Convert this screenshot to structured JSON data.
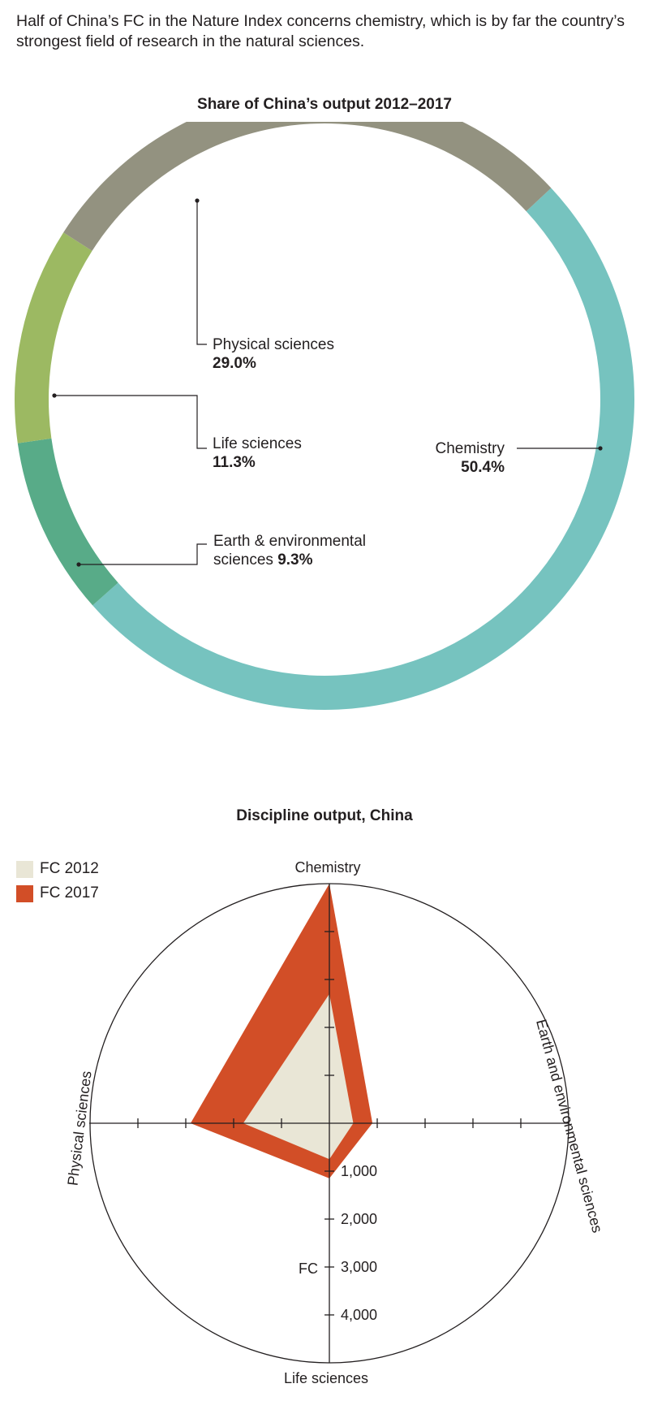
{
  "intro": "Half of China’s FC in the Nature Index concerns chemistry, which is by far the country’s strongest field of research in the natural sciences.",
  "chart_data": [
    {
      "type": "pie",
      "title": "Share of China’s output 2012–2017",
      "slices": [
        {
          "name": "Chemistry",
          "value": 50.4,
          "label": "50.4%",
          "color": "#76c3bf"
        },
        {
          "name": "Earth & environmental sciences",
          "value": 9.3,
          "label": "9.3%",
          "color": "#58ab88"
        },
        {
          "name": "Life sciences",
          "value": 11.3,
          "label": "11.3%",
          "color": "#9cb962"
        },
        {
          "name": "Physical sciences",
          "value": 29.0,
          "label": "29.0%",
          "color": "#939280"
        }
      ]
    },
    {
      "type": "radar",
      "title": "Discipline output, China",
      "axes": [
        "Chemistry",
        "Earth and environmental sciences",
        "Life sciences",
        "Physical sciences"
      ],
      "axis_label": "FC",
      "ticks": [
        1000,
        2000,
        3000,
        4000
      ],
      "tick_labels": [
        "1,000",
        "2,000",
        "3,000",
        "4,000"
      ],
      "max": 5000,
      "series": [
        {
          "name": "FC 2017",
          "color": "#d24e27",
          "values": [
            5000,
            900,
            1150,
            2900
          ]
        },
        {
          "name": "FC 2012",
          "color": "#e9e6d6",
          "values": [
            2700,
            500,
            750,
            1800
          ]
        }
      ]
    }
  ]
}
